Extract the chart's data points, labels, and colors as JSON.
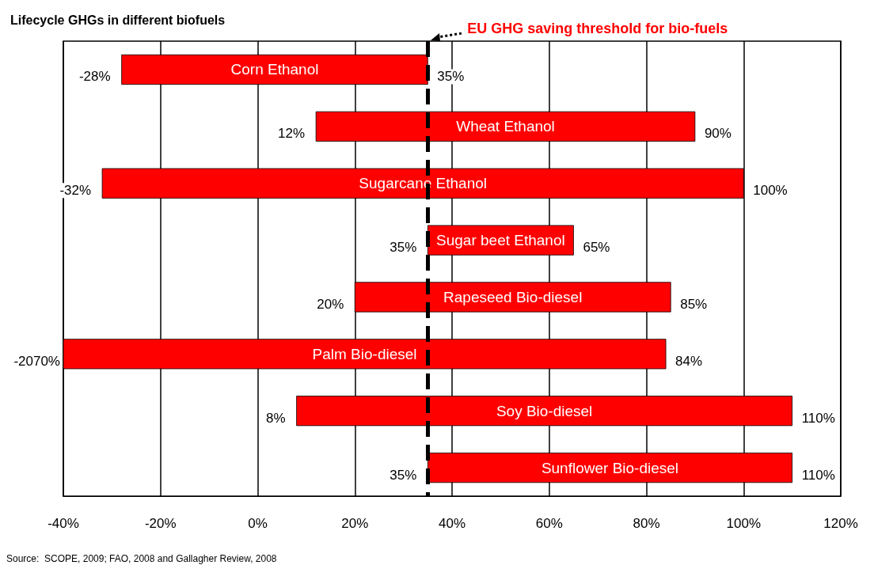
{
  "chart_data": {
    "type": "bar",
    "orientation": "horizontal",
    "title": "Lifecycle GHGs in different biofuels",
    "categories": [
      "Corn Ethanol",
      "Wheat Ethanol",
      "Sugarcane Ethanol",
      "Sugar beet Ethanol",
      "Rapeseed Bio-diesel",
      "Palm Bio-diesel",
      "Soy Bio-diesel",
      "Sunflower Bio-diesel"
    ],
    "base": [
      -28,
      12,
      -32,
      35,
      20,
      -2070,
      8,
      35
    ],
    "values": [
      63,
      78,
      132,
      30,
      65,
      2154,
      102,
      75
    ],
    "color": "#ff0000",
    "xlim": [
      -40,
      120
    ],
    "xticks": [
      {
        "value": -40,
        "label": "-40%"
      },
      {
        "value": -20,
        "label": "-20%"
      },
      {
        "value": 0,
        "label": "0%"
      },
      {
        "value": 20,
        "label": "20%"
      },
      {
        "value": 40,
        "label": "40%"
      },
      {
        "value": 60,
        "label": "60%"
      },
      {
        "value": 80,
        "label": "80%"
      },
      {
        "value": 100,
        "label": "100%"
      },
      {
        "value": 120,
        "label": "120%"
      }
    ],
    "grid": "x",
    "ref_lines": [
      {
        "axis": "x",
        "value": 35,
        "label": "EU GHG saving threshold for bio-fuels",
        "color": "#000000",
        "line_style": "dashed"
      }
    ],
    "annotations": [
      {
        "text": "-28%",
        "x": -28,
        "y": "Corn Ethanol"
      },
      {
        "text": "35%",
        "x": 35,
        "y": "Corn Ethanol"
      },
      {
        "text": "12%",
        "x": 12,
        "y": "Wheat Ethanol"
      },
      {
        "text": "90%",
        "x": 90,
        "y": "Wheat Ethanol"
      },
      {
        "text": "-32%",
        "x": -32,
        "y": "Sugarcane Ethanol"
      },
      {
        "text": "100%",
        "x": 100,
        "y": "Sugarcane Ethanol"
      },
      {
        "text": "35%",
        "x": 35,
        "y": "Sugar beet Ethanol"
      },
      {
        "text": "65%",
        "x": 65,
        "y": "Sugar beet Ethanol"
      },
      {
        "text": "20%",
        "x": 20,
        "y": "Rapeseed Bio-diesel"
      },
      {
        "text": "85%",
        "x": 85,
        "y": "Rapeseed Bio-diesel"
      },
      "-2070%",
      {
        "text": "84%",
        "x": 84,
        "y": "Palm Bio-diesel"
      },
      {
        "text": "8%",
        "x": 8,
        "y": "Soy Bio-diesel"
      },
      {
        "text": "110%",
        "x": 110,
        "y": "Soy Bio-diesel"
      },
      {
        "text": "35%",
        "x": 35,
        "y": "Sunflower Bio-diesel"
      },
      {
        "text": "110%",
        "x": 110,
        "y": "Sunflower Bio-diesel"
      },
      "Source:  SCOPE, 2009; FAO, 2008 and Gallagher Review, 2008"
    ]
  }
}
